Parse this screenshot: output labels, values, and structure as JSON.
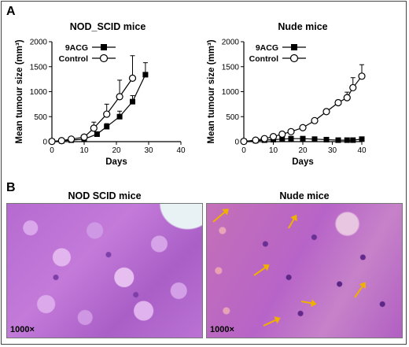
{
  "panel_a_letter": "A",
  "panel_b_letter": "B",
  "chart_data": [
    {
      "type": "line",
      "title": "NOD_SCID mice",
      "xlabel": "Days",
      "ylabel": "Mean tumour size (mm³)",
      "xlim": [
        0,
        40
      ],
      "ylim": [
        0,
        2000
      ],
      "xticks": [
        0,
        10,
        20,
        30,
        40
      ],
      "yticks": [
        0,
        500,
        1000,
        1500,
        2000
      ],
      "legend": "top-left",
      "series": [
        {
          "name": "9ACG",
          "marker": "filled-square",
          "x": [
            0,
            3,
            6,
            10,
            14,
            17,
            21,
            25,
            29
          ],
          "y": [
            5,
            15,
            30,
            50,
            150,
            300,
            500,
            800,
            1340
          ],
          "err": [
            0,
            5,
            10,
            15,
            40,
            60,
            110,
            120,
            240
          ]
        },
        {
          "name": "Control",
          "marker": "open-circle",
          "x": [
            0,
            3,
            6,
            10,
            13,
            17,
            21,
            25
          ],
          "y": [
            5,
            20,
            50,
            90,
            270,
            550,
            900,
            1270
          ],
          "err": [
            0,
            8,
            15,
            30,
            120,
            200,
            330,
            450
          ]
        }
      ]
    },
    {
      "type": "line",
      "title": "Nude mice",
      "xlabel": "Days",
      "ylabel": "Mean tumour size (mm³)",
      "xlim": [
        0,
        40
      ],
      "ylim": [
        0,
        2000
      ],
      "xticks": [
        0,
        10,
        20,
        30,
        40
      ],
      "yticks": [
        0,
        500,
        1000,
        1500,
        2000
      ],
      "legend": "top-left",
      "series": [
        {
          "name": "9ACG",
          "marker": "filled-square",
          "x": [
            0,
            4,
            7,
            10,
            13,
            16,
            20,
            24,
            28,
            32,
            35,
            37,
            40
          ],
          "y": [
            5,
            20,
            30,
            40,
            50,
            60,
            60,
            50,
            40,
            30,
            30,
            30,
            50
          ],
          "err": [
            0,
            5,
            8,
            10,
            10,
            12,
            15,
            12,
            10,
            10,
            10,
            12,
            30
          ]
        },
        {
          "name": "Control",
          "marker": "open-circle",
          "x": [
            0,
            4,
            7,
            10,
            13,
            16,
            20,
            24,
            28,
            32,
            35,
            37,
            40
          ],
          "y": [
            5,
            30,
            60,
            100,
            150,
            200,
            280,
            420,
            600,
            780,
            880,
            1080,
            1310
          ],
          "err": [
            0,
            8,
            12,
            15,
            20,
            25,
            40,
            40,
            50,
            50,
            110,
            200,
            230
          ]
        }
      ]
    }
  ],
  "micrographs": [
    {
      "title": "NOD SCID mice",
      "magnification": "1000×"
    },
    {
      "title": "Nude mice",
      "magnification": "1000×"
    }
  ]
}
